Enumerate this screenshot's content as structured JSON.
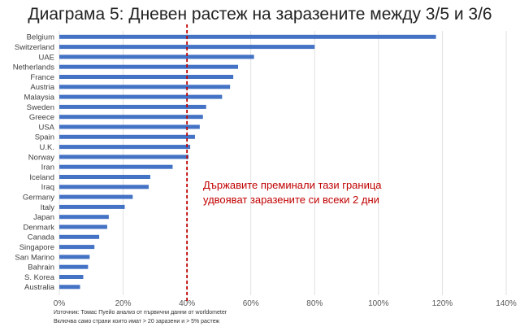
{
  "chart_data": {
    "type": "bar",
    "orientation": "horizontal",
    "title": "Диаграма 5: Дневен растеж на заразените между 3/5 и 3/6",
    "categories": [
      "Belgium",
      "Switzerland",
      "UAE",
      "Netherlands",
      "France",
      "Austria",
      "Malaysia",
      "Sweden",
      "Greece",
      "USA",
      "Spain",
      "U.K.",
      "Norway",
      "Iran",
      "Iceland",
      "Iraq",
      "Germany",
      "Italy",
      "Japan",
      "Denmark",
      "Canada",
      "Singapore",
      "San Marino",
      "Bahrain",
      "S. Korea",
      "Australia"
    ],
    "values": [
      118,
      80,
      61,
      56,
      54.5,
      53.5,
      51,
      46,
      45,
      44,
      42.5,
      41,
      40.5,
      35.5,
      28.5,
      28,
      23,
      20.5,
      15.5,
      15,
      12.5,
      11,
      9.5,
      9,
      7.5,
      6.5
    ],
    "xlim": [
      0,
      140
    ],
    "xticks": [
      "0%",
      "20%",
      "40%",
      "60%",
      "80%",
      "100%",
      "120%",
      "140%"
    ],
    "xtick_step": 20,
    "series_color": "#4472c4",
    "grid": true,
    "threshold": {
      "value": 40,
      "color": "#c00000",
      "style": "dashed",
      "annotation": [
        "Държавите преминали тази граница",
        "удвояват заразените си всеки 2 дни"
      ]
    },
    "xlabel": "",
    "ylabel": ""
  },
  "source_lines": [
    "Източник: Томас Пуейо анализ от първични данни от worldometer",
    "Включва само страни които имат > 20 заразени и > 5% растеж"
  ]
}
